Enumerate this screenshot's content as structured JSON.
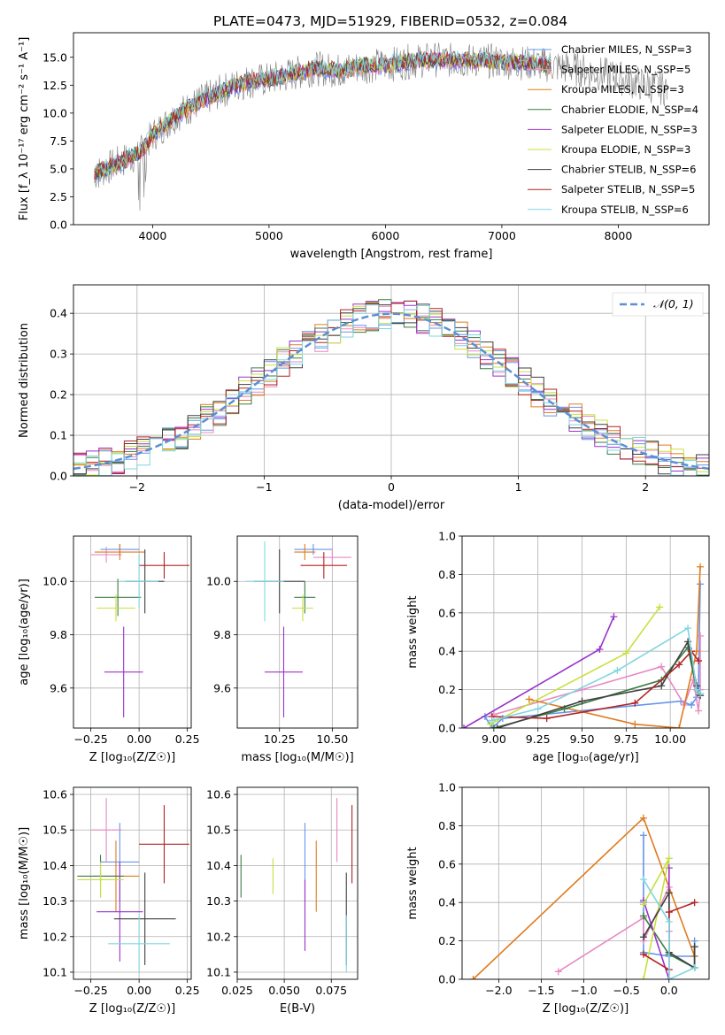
{
  "figure": {
    "title": "PLATE=0473, MJD=51929, FIBERID=0532, z=0.084"
  },
  "chart_data": [
    {
      "id": "spectrum",
      "type": "line",
      "xlabel": "wavelength [Angstrom, rest frame]",
      "ylabel": "Flux [f_λ 10⁻¹⁷ erg cm⁻² s⁻¹ A⁻¹]",
      "xlim": [
        3320,
        8780
      ],
      "ylim": [
        0,
        17.2
      ],
      "xticks": [
        4000,
        5000,
        6000,
        7000,
        8000
      ],
      "yticks": [
        0.0,
        2.5,
        5.0,
        7.5,
        10.0,
        12.5,
        15.0
      ],
      "legend_position": "right",
      "legend": [
        {
          "label": "Chabrier MILES, N_SSP=3",
          "color": "#6495ed"
        },
        {
          "label": "Salpeter MILES, N_SSP=5",
          "color": "#e78ac3"
        },
        {
          "label": "Kroupa MILES, N_SSP=3",
          "color": "#e07b1e"
        },
        {
          "label": "Chabrier ELODIE, N_SSP=4",
          "color": "#3a7d44"
        },
        {
          "label": "Salpeter ELODIE, N_SSP=3",
          "color": "#9932cc"
        },
        {
          "label": "Kroupa ELODIE, N_SSP=3",
          "color": "#c8e03c"
        },
        {
          "label": "Chabrier STELIB, N_SSP=6",
          "color": "#404040"
        },
        {
          "label": "Salpeter STELIB, N_SSP=5",
          "color": "#b22222"
        },
        {
          "label": "Kroupa STELIB, N_SSP=6",
          "color": "#7fd6e0"
        }
      ],
      "data_color": "#808080",
      "model_trend": {
        "x": [
          3500,
          3700,
          3900,
          4000,
          4200,
          4400,
          4600,
          4800,
          5000,
          5200,
          5400,
          5600,
          5800,
          6000,
          6200,
          6400,
          6600,
          6800,
          7000,
          7200,
          7400
        ],
        "y": [
          4.5,
          5.5,
          6.5,
          8.0,
          9.8,
          11.0,
          12.0,
          12.8,
          13.0,
          13.5,
          14.0,
          13.8,
          14.2,
          14.3,
          14.6,
          14.8,
          14.7,
          14.7,
          14.6,
          14.5,
          14.3
        ]
      },
      "data_trend": {
        "x": [
          3500,
          3700,
          3900,
          4000,
          4200,
          4400,
          4600,
          4800,
          5000,
          5200,
          5400,
          5600,
          5800,
          6000,
          6200,
          6400,
          6600,
          6800,
          7000,
          7200,
          7400,
          7600,
          7800,
          8000,
          8200,
          8400
        ],
        "y": [
          4.5,
          5.5,
          6.5,
          8.0,
          9.8,
          11.0,
          12.0,
          12.8,
          13.0,
          13.5,
          14.0,
          13.8,
          14.2,
          14.3,
          14.6,
          14.8,
          14.7,
          14.7,
          14.6,
          14.5,
          14.3,
          14.0,
          13.6,
          13.2,
          12.6,
          12.2
        ]
      }
    },
    {
      "id": "residuals",
      "type": "line",
      "xlabel": "(data-model)/error",
      "ylabel": "Normed distribution",
      "xlim": [
        -2.5,
        2.5
      ],
      "ylim": [
        0,
        0.47
      ],
      "xticks": [
        -2,
        -1,
        0,
        1,
        2
      ],
      "yticks": [
        0.0,
        0.1,
        0.2,
        0.3,
        0.4
      ],
      "grid": true,
      "legend_position": "top-right",
      "legend": [
        {
          "label": "𝒩(0, 1)",
          "color": "#5b8fd6"
        }
      ]
    },
    {
      "id": "age_vs_Z",
      "type": "scatter",
      "xlabel": "Z [log₁₀(Z/Z☉)]",
      "ylabel": "age  [log₁₀(age/yr)]",
      "xlim": [
        -0.34,
        0.27
      ],
      "ylim": [
        9.45,
        10.17
      ],
      "xticks": [
        -0.25,
        0.0,
        0.25
      ],
      "yticks": [
        9.6,
        9.8,
        10.0
      ],
      "grid": true,
      "points": [
        {
          "color": "#6495ed",
          "x": -0.1,
          "y": 10.12,
          "ex": 0.1,
          "ey": 0.02
        },
        {
          "color": "#e78ac3",
          "x": -0.17,
          "y": 10.1,
          "ex": 0.08,
          "ey": 0.03
        },
        {
          "color": "#e07b1e",
          "x": -0.1,
          "y": 10.11,
          "ex": 0.13,
          "ey": 0.03
        },
        {
          "color": "#3a7d44",
          "x": -0.11,
          "y": 9.94,
          "ex": 0.12,
          "ey": 0.07
        },
        {
          "color": "#9932cc",
          "x": -0.08,
          "y": 9.66,
          "ex": 0.1,
          "ey": 0.17
        },
        {
          "color": "#c8e03c",
          "x": -0.12,
          "y": 9.9,
          "ex": 0.1,
          "ey": 0.05
        },
        {
          "color": "#404040",
          "x": 0.03,
          "y": 10.0,
          "ex": 0.1,
          "ey": 0.12
        },
        {
          "color": "#b22222",
          "x": 0.13,
          "y": 10.06,
          "ex": 0.13,
          "ey": 0.05
        },
        {
          "color": "#7fd6e0",
          "x": 0.0,
          "y": 10.0,
          "ex": 0.1,
          "ey": 0.1
        }
      ]
    },
    {
      "id": "age_vs_mass",
      "type": "scatter",
      "xlabel": "mass [log₁₀(M/M☉)]",
      "ylabel": "",
      "xlim": [
        10.05,
        10.62
      ],
      "ylim": [
        9.45,
        10.17
      ],
      "xticks": [
        10.25,
        10.5
      ],
      "yticks": [
        9.6,
        9.8,
        10.0
      ],
      "grid": true,
      "points": [
        {
          "color": "#6495ed",
          "x": 10.41,
          "y": 10.12,
          "ex": 0.09,
          "ey": 0.02
        },
        {
          "color": "#e78ac3",
          "x": 10.5,
          "y": 10.09,
          "ex": 0.09,
          "ey": 0.03
        },
        {
          "color": "#e07b1e",
          "x": 10.37,
          "y": 10.11,
          "ex": 0.05,
          "ey": 0.03
        },
        {
          "color": "#3a7d44",
          "x": 10.37,
          "y": 9.94,
          "ex": 0.05,
          "ey": 0.06
        },
        {
          "color": "#9932cc",
          "x": 10.27,
          "y": 9.66,
          "ex": 0.09,
          "ey": 0.17
        },
        {
          "color": "#c8e03c",
          "x": 10.36,
          "y": 9.9,
          "ex": 0.05,
          "ey": 0.05
        },
        {
          "color": "#404040",
          "x": 10.25,
          "y": 10.0,
          "ex": 0.12,
          "ey": 0.12
        },
        {
          "color": "#b22222",
          "x": 10.46,
          "y": 10.06,
          "ex": 0.11,
          "ey": 0.05
        },
        {
          "color": "#7fd6e0",
          "x": 10.18,
          "y": 10.0,
          "ex": 0.09,
          "ey": 0.15
        }
      ]
    },
    {
      "id": "mass_weight_vs_age",
      "type": "line",
      "xlabel": "age  [log₁₀(age/yr)]",
      "ylabel": "mass weight",
      "xlim": [
        8.82,
        10.22
      ],
      "ylim": [
        0,
        1.0
      ],
      "xticks": [
        9.0,
        9.25,
        9.5,
        9.75,
        10.0
      ],
      "yticks": [
        0.0,
        0.2,
        0.4,
        0.6,
        0.8,
        1.0
      ],
      "grid": true,
      "series": [
        {
          "color": "#6495ed",
          "x": [
            8.95,
            8.99,
            9.05,
            10.06,
            10.12,
            10.15,
            10.16,
            10.17
          ],
          "y": [
            0.06,
            0.0,
            0.05,
            0.14,
            0.12,
            0.16,
            0.2,
            0.75
          ]
        },
        {
          "color": "#e78ac3",
          "x": [
            9.0,
            9.5,
            9.95,
            10.08,
            10.13,
            10.16,
            10.17,
            10.17
          ],
          "y": [
            0.07,
            0.2,
            0.32,
            0.12,
            0.25,
            0.09,
            0.2,
            0.48
          ]
        },
        {
          "color": "#e07b1e",
          "x": [
            9.2,
            9.8,
            10.05,
            10.15,
            10.17
          ],
          "y": [
            0.15,
            0.02,
            0.0,
            0.4,
            0.84
          ]
        },
        {
          "color": "#3a7d44",
          "x": [
            9.0,
            9.4,
            9.95,
            10.1,
            10.15,
            10.17
          ],
          "y": [
            0.0,
            0.1,
            0.25,
            0.42,
            0.2,
            0.17
          ]
        },
        {
          "color": "#9932cc",
          "x": [
            8.83,
            9.6,
            9.68
          ],
          "y": [
            0.0,
            0.41,
            0.58
          ]
        },
        {
          "color": "#c8e03c",
          "x": [
            8.98,
            9.75,
            9.94
          ],
          "y": [
            0.02,
            0.39,
            0.63
          ]
        },
        {
          "color": "#404040",
          "x": [
            9.02,
            9.5,
            9.95,
            10.1,
            10.15,
            10.17
          ],
          "y": [
            0.0,
            0.14,
            0.22,
            0.45,
            0.22,
            0.17
          ]
        },
        {
          "color": "#b22222",
          "x": [
            8.99,
            9.3,
            9.8,
            10.05,
            10.12,
            10.16
          ],
          "y": [
            0.06,
            0.05,
            0.13,
            0.33,
            0.4,
            0.35
          ]
        },
        {
          "color": "#7fd6e0",
          "x": [
            8.99,
            9.25,
            9.7,
            10.1,
            10.15,
            10.17
          ],
          "y": [
            0.04,
            0.1,
            0.3,
            0.52,
            0.2,
            0.18
          ]
        }
      ]
    },
    {
      "id": "mass_vs_Z",
      "type": "scatter",
      "xlabel": "Z [log₁₀(Z/Z☉)]",
      "ylabel": "mass [log₁₀(M/M☉)]",
      "xlim": [
        -0.34,
        0.27
      ],
      "ylim": [
        10.08,
        10.62
      ],
      "xticks": [
        -0.25,
        0.0,
        0.25
      ],
      "yticks": [
        10.1,
        10.2,
        10.3,
        10.4,
        10.5,
        10.6
      ],
      "grid": true,
      "points": [
        {
          "color": "#6495ed",
          "x": -0.1,
          "y": 10.41,
          "ex": 0.1,
          "ey": 0.11
        },
        {
          "color": "#e78ac3",
          "x": -0.17,
          "y": 10.5,
          "ex": 0.08,
          "ey": 0.09
        },
        {
          "color": "#e07b1e",
          "x": -0.12,
          "y": 10.37,
          "ex": 0.12,
          "ey": 0.1
        },
        {
          "color": "#3a7d44",
          "x": -0.2,
          "y": 10.37,
          "ex": 0.12,
          "ey": 0.06
        },
        {
          "color": "#9932cc",
          "x": -0.1,
          "y": 10.27,
          "ex": 0.12,
          "ey": 0.14
        },
        {
          "color": "#c8e03c",
          "x": -0.2,
          "y": 10.36,
          "ex": 0.12,
          "ey": 0.05
        },
        {
          "color": "#404040",
          "x": 0.03,
          "y": 10.25,
          "ex": 0.16,
          "ey": 0.13
        },
        {
          "color": "#b22222",
          "x": 0.13,
          "y": 10.46,
          "ex": 0.13,
          "ey": 0.11
        },
        {
          "color": "#7fd6e0",
          "x": 0.0,
          "y": 10.18,
          "ex": 0.16,
          "ey": 0.08
        }
      ]
    },
    {
      "id": "mass_vs_ebv",
      "type": "scatter",
      "xlabel": "E(B-V)",
      "ylabel": "",
      "xlim": [
        0.025,
        0.089
      ],
      "ylim": [
        10.08,
        10.62
      ],
      "xticks": [
        0.025,
        0.05,
        0.075
      ],
      "yticks": [
        10.1,
        10.2,
        10.3,
        10.4,
        10.5,
        10.6
      ],
      "grid": true,
      "points": [
        {
          "color": "#6495ed",
          "x": 0.061,
          "y": 10.41,
          "ex": 0,
          "ey": 0.11
        },
        {
          "color": "#e78ac3",
          "x": 0.078,
          "y": 10.5,
          "ex": 0,
          "ey": 0.09
        },
        {
          "color": "#e07b1e",
          "x": 0.067,
          "y": 10.37,
          "ex": 0,
          "ey": 0.1
        },
        {
          "color": "#3a7d44",
          "x": 0.027,
          "y": 10.37,
          "ex": 0,
          "ey": 0.06
        },
        {
          "color": "#9932cc",
          "x": 0.061,
          "y": 10.26,
          "ex": 0,
          "ey": 0.1
        },
        {
          "color": "#c8e03c",
          "x": 0.044,
          "y": 10.37,
          "ex": 0,
          "ey": 0.05
        },
        {
          "color": "#404040",
          "x": 0.083,
          "y": 10.25,
          "ex": 0,
          "ey": 0.13
        },
        {
          "color": "#b22222",
          "x": 0.086,
          "y": 10.46,
          "ex": 0,
          "ey": 0.11
        },
        {
          "color": "#7fd6e0",
          "x": 0.083,
          "y": 10.18,
          "ex": 0,
          "ey": 0.08
        }
      ]
    },
    {
      "id": "mass_weight_vs_Z",
      "type": "line",
      "xlabel": "Z [log₁₀(Z/Z☉)]",
      "ylabel": "mass weight",
      "xlim": [
        -2.43,
        0.47
      ],
      "ylim": [
        0,
        1.0
      ],
      "xticks": [
        -2.0,
        -1.5,
        -1.0,
        -0.5,
        0.0
      ],
      "yticks": [
        0.0,
        0.2,
        0.4,
        0.6,
        0.8,
        1.0
      ],
      "grid": true,
      "series": [
        {
          "color": "#6495ed",
          "x": [
            -0.3,
            -0.3,
            -0.3,
            0.0,
            0.3,
            0.3
          ],
          "y": [
            0.75,
            0.4,
            0.14,
            0.12,
            0.12,
            0.2
          ]
        },
        {
          "color": "#e78ac3",
          "x": [
            -1.3,
            -0.3,
            -0.3,
            0.0,
            0.0
          ],
          "y": [
            0.04,
            0.32,
            0.2,
            0.48,
            0.25
          ]
        },
        {
          "color": "#e07b1e",
          "x": [
            -2.3,
            -0.3,
            0.3
          ],
          "y": [
            0.0,
            0.84,
            0.12
          ]
        },
        {
          "color": "#3a7d44",
          "x": [
            -0.3,
            0.0,
            0.3,
            0.3
          ],
          "y": [
            0.33,
            0.13,
            0.06,
            0.17
          ]
        },
        {
          "color": "#9932cc",
          "x": [
            0.0,
            0.0,
            -0.3
          ],
          "y": [
            0.58,
            0.0,
            0.41
          ]
        },
        {
          "color": "#c8e03c",
          "x": [
            -0.3,
            0.0,
            -0.3
          ],
          "y": [
            0.0,
            0.63,
            0.39
          ]
        },
        {
          "color": "#404040",
          "x": [
            -0.3,
            0.0,
            0.0,
            0.3,
            0.3
          ],
          "y": [
            0.22,
            0.45,
            0.14,
            0.06,
            0.17
          ]
        },
        {
          "color": "#b22222",
          "x": [
            -0.3,
            0.0,
            0.0,
            0.3
          ],
          "y": [
            0.13,
            0.05,
            0.35,
            0.4
          ]
        },
        {
          "color": "#7fd6e0",
          "x": [
            -0.3,
            0.0,
            0.0,
            0.3
          ],
          "y": [
            0.52,
            0.3,
            0.0,
            0.06
          ]
        }
      ]
    }
  ]
}
